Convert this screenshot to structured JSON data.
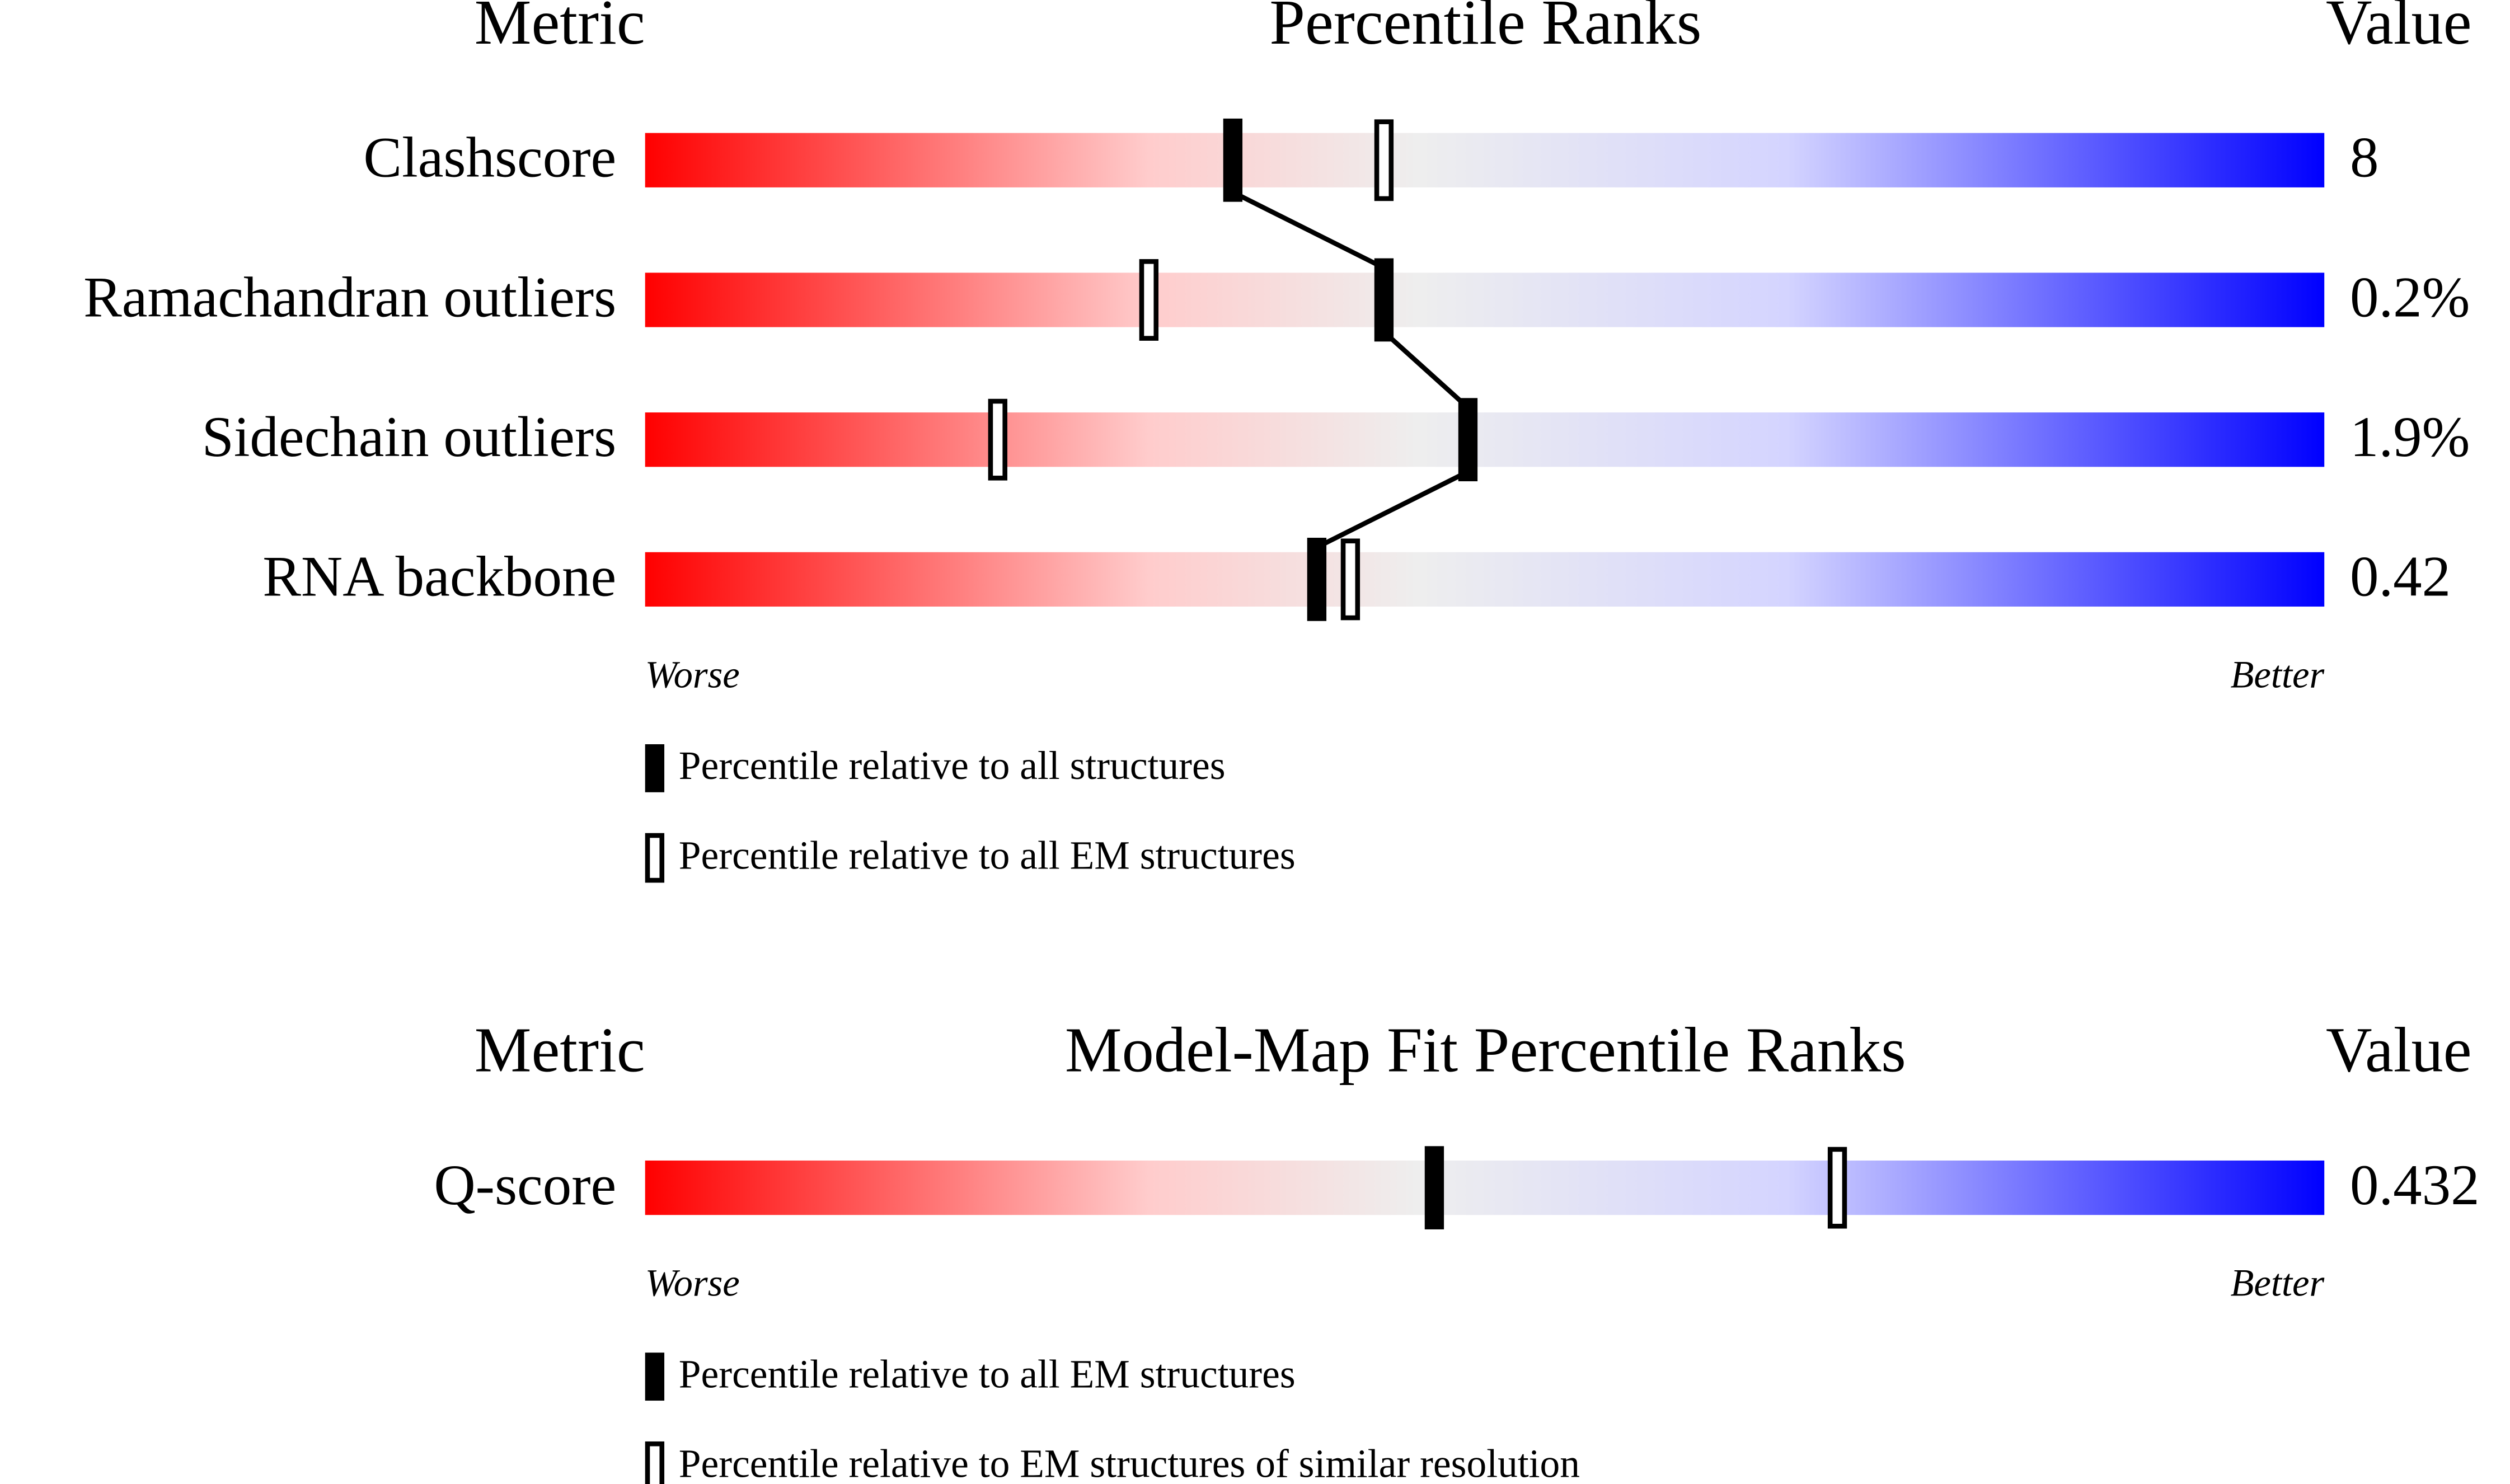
{
  "chart_data": [
    {
      "type": "percentile-slider",
      "headers": {
        "metric": "Metric",
        "ranks": "Percentile Ranks",
        "value": "Value"
      },
      "categories": [
        "Clashscore",
        "Ramachandran outliers",
        "Sidechain outliers",
        "RNA backbone"
      ],
      "series": [
        {
          "name": "Percentile relative to all structures",
          "style": "filled",
          "color": "#000000",
          "values": [
            35,
            44,
            49,
            40
          ]
        },
        {
          "name": "Percentile relative to all EM structures",
          "style": "open",
          "color": "#000000",
          "values": [
            44,
            30,
            21,
            42
          ]
        }
      ],
      "value_labels": [
        "8",
        "0.2%",
        "1.9%",
        "0.42"
      ],
      "xlim": [
        0,
        100
      ],
      "axis_labels": {
        "low": "Worse",
        "high": "Better"
      }
    },
    {
      "type": "percentile-slider",
      "headers": {
        "metric": "Metric",
        "ranks": "Model-Map Fit Percentile Ranks",
        "value": "Value"
      },
      "categories": [
        "Q-score"
      ],
      "series": [
        {
          "name": "Percentile relative to all EM structures",
          "style": "filled",
          "color": "#000000",
          "values": [
            47
          ]
        },
        {
          "name": "Percentile relative to EM structures of similar resolution",
          "style": "open",
          "color": "#000000",
          "values": [
            71
          ]
        }
      ],
      "value_labels": [
        "0.432"
      ],
      "xlim": [
        0,
        100
      ],
      "axis_labels": {
        "low": "Worse",
        "high": "Better"
      }
    }
  ]
}
